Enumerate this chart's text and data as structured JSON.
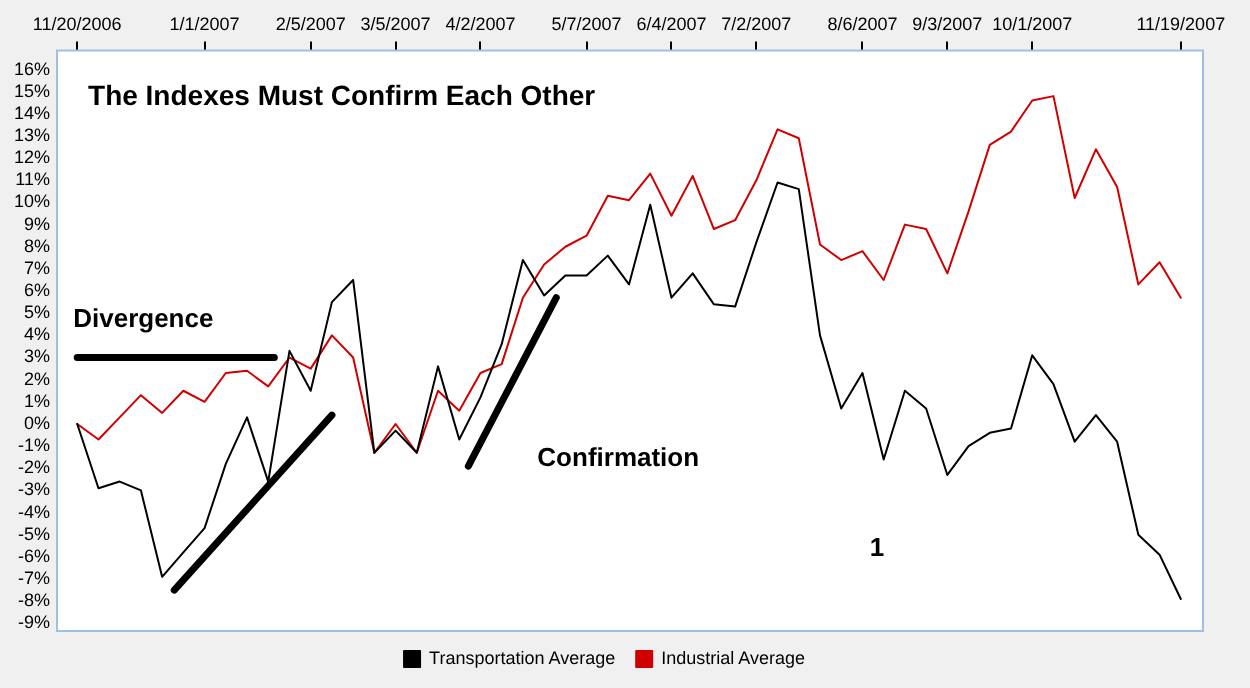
{
  "chart_data": {
    "type": "line",
    "title": "The Indexes Must Confirm Each Other",
    "x": [
      "2006-11-20",
      "2006-11-27",
      "2006-12-04",
      "2006-12-11",
      "2006-12-18",
      "2006-12-25",
      "2007-01-01",
      "2007-01-08",
      "2007-01-15",
      "2007-01-22",
      "2007-01-29",
      "2007-02-05",
      "2007-02-12",
      "2007-02-19",
      "2007-02-26",
      "2007-03-05",
      "2007-03-12",
      "2007-03-19",
      "2007-03-26",
      "2007-04-02",
      "2007-04-09",
      "2007-04-16",
      "2007-04-23",
      "2007-04-30",
      "2007-05-07",
      "2007-05-14",
      "2007-05-21",
      "2007-05-28",
      "2007-06-04",
      "2007-06-11",
      "2007-06-18",
      "2007-06-25",
      "2007-07-02",
      "2007-07-09",
      "2007-07-16",
      "2007-07-23",
      "2007-07-30",
      "2007-08-06",
      "2007-08-13",
      "2007-08-20",
      "2007-08-27",
      "2007-09-03",
      "2007-09-10",
      "2007-09-17",
      "2007-09-24",
      "2007-10-01",
      "2007-10-08",
      "2007-10-15",
      "2007-10-22",
      "2007-10-29",
      "2007-11-05",
      "2007-11-12",
      "2007-11-19"
    ],
    "series": [
      {
        "name": "Transportation Average",
        "color": "#000000",
        "values": [
          0,
          -2.9,
          -2.6,
          -3.0,
          -6.9,
          -5.8,
          -4.7,
          -1.8,
          0.3,
          -2.6,
          3.3,
          1.5,
          5.5,
          6.5,
          -1.3,
          -0.3,
          -1.3,
          2.6,
          -0.7,
          1.2,
          3.6,
          7.4,
          5.8,
          6.7,
          6.7,
          7.6,
          6.3,
          9.9,
          5.7,
          6.8,
          5.4,
          5.3,
          8.2,
          10.9,
          10.6,
          4.0,
          0.7,
          2.3,
          -1.6,
          1.5,
          0.7,
          -2.3,
          -1.0,
          -0.4,
          -0.2,
          3.1,
          1.8,
          -0.8,
          0.4,
          -0.8,
          -5.0,
          -5.9,
          -7.9
        ]
      },
      {
        "name": "Industrial Average",
        "color": "#d00000",
        "values": [
          0,
          -0.7,
          0.3,
          1.3,
          0.5,
          1.5,
          1.0,
          2.3,
          2.4,
          1.7,
          3.0,
          2.5,
          4.0,
          3.0,
          -1.3,
          0,
          -1.3,
          1.5,
          0.6,
          2.3,
          2.7,
          5.7,
          7.2,
          8.0,
          8.5,
          10.3,
          10.1,
          11.3,
          9.4,
          11.2,
          8.8,
          9.2,
          11.0,
          13.3,
          12.9,
          8.1,
          7.4,
          7.8,
          6.5,
          9.0,
          8.8,
          6.8,
          9.6,
          12.6,
          13.2,
          14.6,
          14.8,
          10.2,
          12.4,
          10.7,
          6.3,
          7.3,
          5.7
        ]
      },
      {
        "color": "#000000",
        "x": [
          "2006-11-20",
          "2007-01-24"
        ],
        "values": [
          3.0,
          3.0
        ]
      },
      {
        "color": "#000000",
        "x": [
          "2006-12-22",
          "2007-02-12"
        ],
        "values": [
          -7.5,
          0.4
        ]
      },
      {
        "color": "#000000",
        "x": [
          "2007-03-29",
          "2007-04-27"
        ],
        "values": [
          -1.9,
          5.7
        ]
      }
    ],
    "annotations": [
      "Divergence",
      "Confirmation",
      "1"
    ],
    "xlim": [
      "2006-11-13",
      "2007-11-26"
    ],
    "xticks": [
      {
        "value": "2006-11-20",
        "label": "11/20/2006"
      },
      {
        "value": "2007-01-01",
        "label": "1/1/2007"
      },
      {
        "value": "2007-02-05",
        "label": "2/5/2007"
      },
      {
        "value": "2007-03-05",
        "label": "3/5/2007"
      },
      {
        "value": "2007-04-02",
        "label": "4/2/2007"
      },
      {
        "value": "2007-05-07",
        "label": "5/7/2007"
      },
      {
        "value": "2007-06-04",
        "label": "6/4/2007"
      },
      {
        "value": "2007-07-02",
        "label": "7/2/2007"
      },
      {
        "value": "2007-08-06",
        "label": "8/6/2007"
      },
      {
        "value": "2007-09-03",
        "label": "9/3/2007"
      },
      {
        "value": "2007-10-01",
        "label": "10/1/2007"
      },
      {
        "value": "2007-11-19",
        "label": "11/19/2007"
      }
    ],
    "ylim": [
      -9.3,
      16.9
    ],
    "yticks": [
      {
        "value": -9,
        "label": "-9%"
      },
      {
        "value": -8,
        "label": "-8%"
      },
      {
        "value": -7,
        "label": "-7%"
      },
      {
        "value": -6,
        "label": "-6%"
      },
      {
        "value": -5,
        "label": "-5%"
      },
      {
        "value": -4,
        "label": "-4%"
      },
      {
        "value": -3,
        "label": "-3%"
      },
      {
        "value": -2,
        "label": "-2%"
      },
      {
        "value": -1,
        "label": "-1%"
      },
      {
        "value": 0,
        "label": "0%"
      },
      {
        "value": 1,
        "label": "1%"
      },
      {
        "value": 2,
        "label": "2%"
      },
      {
        "value": 3,
        "label": "3%"
      },
      {
        "value": 4,
        "label": "4%"
      },
      {
        "value": 5,
        "label": "5%"
      },
      {
        "value": 6,
        "label": "6%"
      },
      {
        "value": 7,
        "label": "7%"
      },
      {
        "value": 8,
        "label": "8%"
      },
      {
        "value": 9,
        "label": "9%"
      },
      {
        "value": 10,
        "label": "10%"
      },
      {
        "value": 11,
        "label": "11%"
      },
      {
        "value": 12,
        "label": "12%"
      },
      {
        "value": 13,
        "label": "13%"
      },
      {
        "value": 14,
        "label": "14%"
      },
      {
        "value": 15,
        "label": "15%"
      },
      {
        "value": 16,
        "label": "16%"
      }
    ],
    "grid": false,
    "legend": "bottom",
    "marker": "none",
    "line_style": "solid"
  }
}
